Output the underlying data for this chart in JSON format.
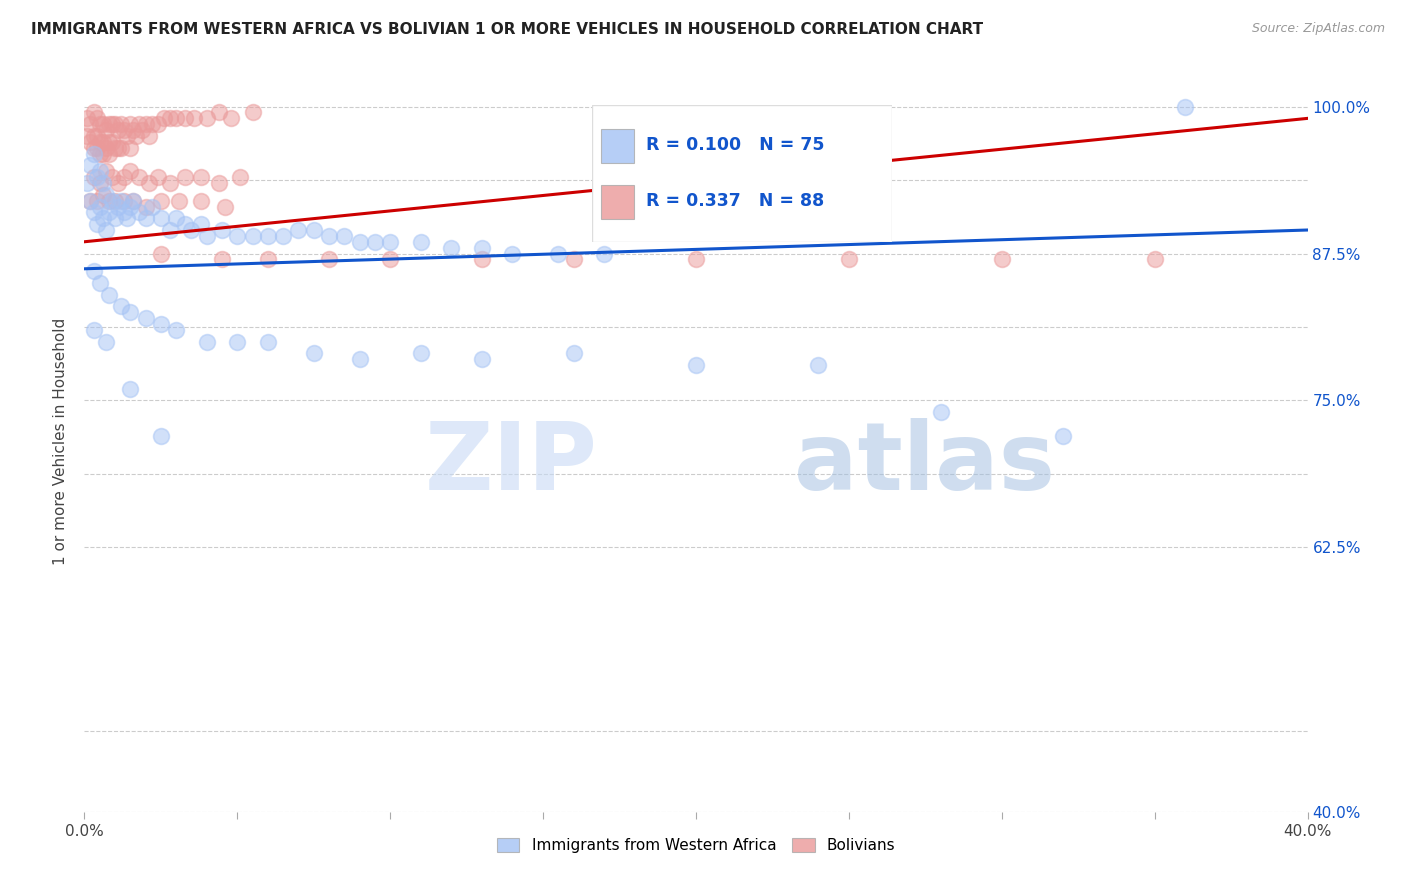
{
  "title": "IMMIGRANTS FROM WESTERN AFRICA VS BOLIVIAN 1 OR MORE VEHICLES IN HOUSEHOLD CORRELATION CHART",
  "source": "Source: ZipAtlas.com",
  "ylabel": "1 or more Vehicles in Household",
  "legend_bottom": [
    "Immigrants from Western Africa",
    "Bolivians"
  ],
  "r_blue": 0.1,
  "n_blue": 75,
  "r_pink": 0.337,
  "n_pink": 88,
  "blue_color": "#a4c2f4",
  "pink_color": "#ea9999",
  "line_blue": "#1155cc",
  "line_pink": "#cc0000",
  "text_color_r": "#1155cc",
  "watermark_zip": "ZIP",
  "watermark_atlas": "atlas",
  "xlim": [
    0.0,
    0.4
  ],
  "ylim": [
    0.4,
    1.03
  ],
  "xtick_positions": [
    0.0,
    0.05,
    0.1,
    0.15,
    0.2,
    0.25,
    0.3,
    0.35,
    0.4
  ],
  "xtick_labels": [
    "0.0%",
    "",
    "",
    "",
    "",
    "",
    "",
    "",
    "40.0%"
  ],
  "ytick_positions": [
    0.4,
    0.4688,
    0.625,
    0.6875,
    0.75,
    0.8125,
    0.875,
    0.9375,
    1.0
  ],
  "ytick_labels": [
    "40.0%",
    "",
    "62.5%",
    "",
    "75.0%",
    "",
    "87.5%",
    "",
    "100.0%"
  ],
  "blue_x": [
    0.001,
    0.002,
    0.002,
    0.003,
    0.003,
    0.004,
    0.004,
    0.005,
    0.005,
    0.006,
    0.006,
    0.007,
    0.007,
    0.008,
    0.009,
    0.01,
    0.011,
    0.012,
    0.013,
    0.014,
    0.015,
    0.016,
    0.018,
    0.02,
    0.022,
    0.025,
    0.028,
    0.03,
    0.033,
    0.035,
    0.038,
    0.04,
    0.045,
    0.05,
    0.055,
    0.06,
    0.065,
    0.07,
    0.075,
    0.08,
    0.085,
    0.09,
    0.095,
    0.1,
    0.11,
    0.12,
    0.13,
    0.14,
    0.155,
    0.17,
    0.003,
    0.005,
    0.008,
    0.012,
    0.015,
    0.02,
    0.025,
    0.03,
    0.04,
    0.05,
    0.06,
    0.075,
    0.09,
    0.11,
    0.13,
    0.16,
    0.2,
    0.24,
    0.28,
    0.32,
    0.36,
    0.003,
    0.007,
    0.015,
    0.025
  ],
  "blue_y": [
    0.935,
    0.92,
    0.95,
    0.91,
    0.96,
    0.9,
    0.94,
    0.915,
    0.945,
    0.905,
    0.935,
    0.895,
    0.925,
    0.91,
    0.92,
    0.905,
    0.915,
    0.92,
    0.91,
    0.905,
    0.915,
    0.92,
    0.91,
    0.905,
    0.915,
    0.905,
    0.895,
    0.905,
    0.9,
    0.895,
    0.9,
    0.89,
    0.895,
    0.89,
    0.89,
    0.89,
    0.89,
    0.895,
    0.895,
    0.89,
    0.89,
    0.885,
    0.885,
    0.885,
    0.885,
    0.88,
    0.88,
    0.875,
    0.875,
    0.875,
    0.86,
    0.85,
    0.84,
    0.83,
    0.825,
    0.82,
    0.815,
    0.81,
    0.8,
    0.8,
    0.8,
    0.79,
    0.785,
    0.79,
    0.785,
    0.79,
    0.78,
    0.78,
    0.74,
    0.72,
    1.0,
    0.81,
    0.8,
    0.76,
    0.72
  ],
  "pink_x": [
    0.001,
    0.001,
    0.002,
    0.002,
    0.003,
    0.003,
    0.003,
    0.004,
    0.004,
    0.004,
    0.005,
    0.005,
    0.005,
    0.006,
    0.006,
    0.006,
    0.007,
    0.007,
    0.008,
    0.008,
    0.008,
    0.009,
    0.009,
    0.01,
    0.01,
    0.011,
    0.011,
    0.012,
    0.012,
    0.013,
    0.014,
    0.015,
    0.015,
    0.016,
    0.017,
    0.018,
    0.019,
    0.02,
    0.021,
    0.022,
    0.024,
    0.026,
    0.028,
    0.03,
    0.033,
    0.036,
    0.04,
    0.044,
    0.048,
    0.055,
    0.003,
    0.005,
    0.007,
    0.009,
    0.011,
    0.013,
    0.015,
    0.018,
    0.021,
    0.024,
    0.028,
    0.033,
    0.038,
    0.044,
    0.051,
    0.002,
    0.004,
    0.006,
    0.008,
    0.01,
    0.013,
    0.016,
    0.02,
    0.025,
    0.031,
    0.038,
    0.046,
    0.025,
    0.045,
    0.06,
    0.08,
    0.1,
    0.13,
    0.16,
    0.2,
    0.25,
    0.3,
    0.35
  ],
  "pink_y": [
    0.99,
    0.975,
    0.985,
    0.97,
    0.995,
    0.975,
    0.965,
    0.99,
    0.975,
    0.965,
    0.985,
    0.97,
    0.96,
    0.985,
    0.97,
    0.96,
    0.98,
    0.965,
    0.985,
    0.97,
    0.96,
    0.985,
    0.97,
    0.985,
    0.965,
    0.98,
    0.965,
    0.985,
    0.965,
    0.98,
    0.975,
    0.985,
    0.965,
    0.98,
    0.975,
    0.985,
    0.98,
    0.985,
    0.975,
    0.985,
    0.985,
    0.99,
    0.99,
    0.99,
    0.99,
    0.99,
    0.99,
    0.995,
    0.99,
    0.995,
    0.94,
    0.935,
    0.945,
    0.94,
    0.935,
    0.94,
    0.945,
    0.94,
    0.935,
    0.94,
    0.935,
    0.94,
    0.94,
    0.935,
    0.94,
    0.92,
    0.92,
    0.925,
    0.92,
    0.92,
    0.92,
    0.92,
    0.915,
    0.92,
    0.92,
    0.92,
    0.915,
    0.875,
    0.87,
    0.87,
    0.87,
    0.87,
    0.87,
    0.87,
    0.87,
    0.87,
    0.87,
    0.87
  ]
}
